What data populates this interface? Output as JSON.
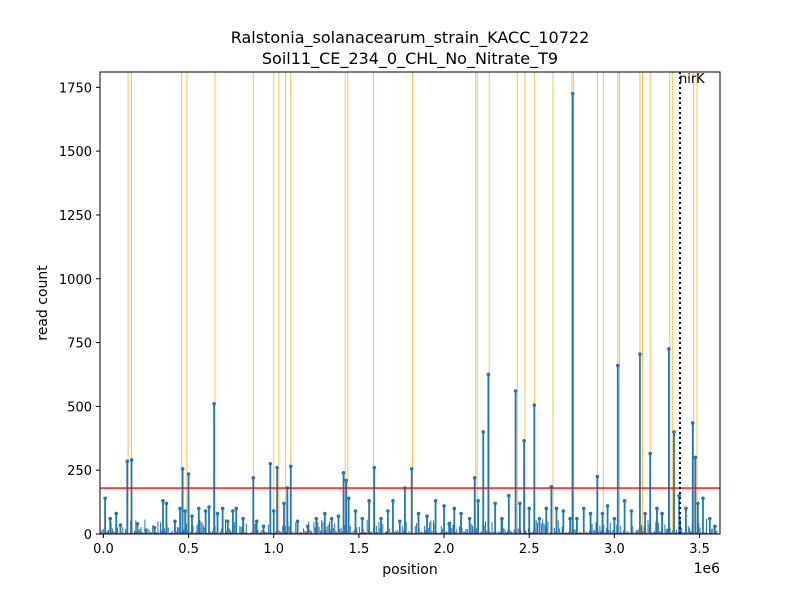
{
  "chart_data": {
    "type": "bar",
    "title": "Ralstonia_solanacearum_strain_KACC_10722",
    "subtitle": "Soil11_CE_234_0_CHL_No_Nitrate_T9",
    "xlabel": "position",
    "ylabel": "read count",
    "x_offset_label": "1e6",
    "xlim": [
      -20000,
      3620000
    ],
    "ylim": [
      0,
      1810
    ],
    "x_ticks": [
      0,
      500000,
      1000000,
      1500000,
      2000000,
      2500000,
      3000000,
      3500000
    ],
    "x_tick_labels": [
      "0.0",
      "0.5",
      "1.0",
      "1.5",
      "2.0",
      "2.5",
      "3.0",
      "3.5"
    ],
    "y_ticks": [
      0,
      250,
      500,
      750,
      1000,
      1250,
      1500,
      1750
    ],
    "y_tick_labels": [
      "0",
      "250",
      "500",
      "750",
      "1000",
      "1250",
      "1500",
      "1750"
    ],
    "threshold": 180,
    "gene_marker": {
      "label": "nirK",
      "position": 3385000
    },
    "highlight_positions": [
      145000,
      165000,
      460000,
      490000,
      655000,
      880000,
      1000000,
      1030000,
      1070000,
      1100000,
      1420000,
      1435000,
      1585000,
      1815000,
      2185000,
      2195000,
      2265000,
      2430000,
      2475000,
      2530000,
      2640000,
      2750000,
      2760000,
      2900000,
      2935000,
      3020000,
      3030000,
      3150000,
      3165000,
      3210000,
      3325000,
      3340000,
      3465000,
      3485000
    ],
    "peaks": [
      [
        10000,
        140
      ],
      [
        40000,
        60
      ],
      [
        75000,
        80
      ],
      [
        100000,
        35
      ],
      [
        140000,
        285
      ],
      [
        165000,
        290
      ],
      [
        200000,
        40
      ],
      [
        250000,
        15
      ],
      [
        300000,
        25
      ],
      [
        350000,
        130
      ],
      [
        370000,
        120
      ],
      [
        420000,
        50
      ],
      [
        450000,
        100
      ],
      [
        465000,
        255
      ],
      [
        480000,
        90
      ],
      [
        500000,
        235
      ],
      [
        520000,
        70
      ],
      [
        560000,
        100
      ],
      [
        600000,
        90
      ],
      [
        620000,
        105
      ],
      [
        650000,
        510
      ],
      [
        670000,
        80
      ],
      [
        700000,
        100
      ],
      [
        730000,
        50
      ],
      [
        760000,
        90
      ],
      [
        780000,
        100
      ],
      [
        820000,
        60
      ],
      [
        880000,
        220
      ],
      [
        900000,
        50
      ],
      [
        940000,
        30
      ],
      [
        980000,
        275
      ],
      [
        1000000,
        90
      ],
      [
        1020000,
        260
      ],
      [
        1060000,
        120
      ],
      [
        1080000,
        180
      ],
      [
        1100000,
        265
      ],
      [
        1140000,
        50
      ],
      [
        1200000,
        30
      ],
      [
        1250000,
        60
      ],
      [
        1300000,
        80
      ],
      [
        1340000,
        60
      ],
      [
        1380000,
        70
      ],
      [
        1410000,
        240
      ],
      [
        1425000,
        210
      ],
      [
        1440000,
        140
      ],
      [
        1480000,
        90
      ],
      [
        1520000,
        60
      ],
      [
        1560000,
        130
      ],
      [
        1590000,
        260
      ],
      [
        1630000,
        60
      ],
      [
        1670000,
        90
      ],
      [
        1700000,
        130
      ],
      [
        1740000,
        50
      ],
      [
        1770000,
        180
      ],
      [
        1810000,
        255
      ],
      [
        1850000,
        80
      ],
      [
        1900000,
        70
      ],
      [
        1950000,
        130
      ],
      [
        2000000,
        110
      ],
      [
        2030000,
        40
      ],
      [
        2060000,
        100
      ],
      [
        2100000,
        80
      ],
      [
        2150000,
        60
      ],
      [
        2180000,
        220
      ],
      [
        2200000,
        130
      ],
      [
        2230000,
        400
      ],
      [
        2260000,
        625
      ],
      [
        2300000,
        120
      ],
      [
        2340000,
        60
      ],
      [
        2380000,
        150
      ],
      [
        2420000,
        560
      ],
      [
        2445000,
        120
      ],
      [
        2470000,
        365
      ],
      [
        2500000,
        100
      ],
      [
        2530000,
        505
      ],
      [
        2560000,
        60
      ],
      [
        2600000,
        100
      ],
      [
        2630000,
        185
      ],
      [
        2660000,
        100
      ],
      [
        2700000,
        90
      ],
      [
        2740000,
        60
      ],
      [
        2755000,
        1725
      ],
      [
        2780000,
        60
      ],
      [
        2820000,
        100
      ],
      [
        2860000,
        80
      ],
      [
        2900000,
        225
      ],
      [
        2930000,
        80
      ],
      [
        2960000,
        110
      ],
      [
        3000000,
        60
      ],
      [
        3020000,
        660
      ],
      [
        3060000,
        130
      ],
      [
        3100000,
        90
      ],
      [
        3150000,
        705
      ],
      [
        3180000,
        80
      ],
      [
        3210000,
        315
      ],
      [
        3250000,
        100
      ],
      [
        3280000,
        80
      ],
      [
        3320000,
        725
      ],
      [
        3350000,
        400
      ],
      [
        3380000,
        150
      ],
      [
        3420000,
        100
      ],
      [
        3460000,
        435
      ],
      [
        3475000,
        300
      ],
      [
        3490000,
        120
      ],
      [
        3520000,
        140
      ],
      [
        3560000,
        60
      ],
      [
        3590000,
        30
      ]
    ]
  }
}
